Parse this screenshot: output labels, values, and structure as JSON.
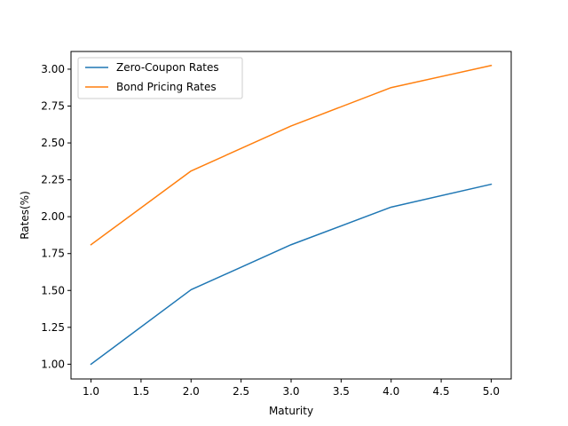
{
  "chart_data": {
    "type": "line",
    "title": "",
    "xlabel": "Maturity",
    "ylabel": "Rates(%)",
    "xlim": [
      0.8,
      5.2
    ],
    "ylim": [
      0.9,
      3.12
    ],
    "grid": false,
    "legend_position": "upper-left",
    "x_ticks": [
      {
        "value": 1.0,
        "label": "1.0"
      },
      {
        "value": 1.5,
        "label": "1.5"
      },
      {
        "value": 2.0,
        "label": "2.0"
      },
      {
        "value": 2.5,
        "label": "2.5"
      },
      {
        "value": 3.0,
        "label": "3.0"
      },
      {
        "value": 3.5,
        "label": "3.5"
      },
      {
        "value": 4.0,
        "label": "4.0"
      },
      {
        "value": 4.5,
        "label": "4.5"
      },
      {
        "value": 5.0,
        "label": "5.0"
      }
    ],
    "y_ticks": [
      {
        "value": 1.0,
        "label": "1.00"
      },
      {
        "value": 1.25,
        "label": "1.25"
      },
      {
        "value": 1.5,
        "label": "1.50"
      },
      {
        "value": 1.75,
        "label": "1.75"
      },
      {
        "value": 2.0,
        "label": "2.00"
      },
      {
        "value": 2.25,
        "label": "2.25"
      },
      {
        "value": 2.5,
        "label": "2.50"
      },
      {
        "value": 2.75,
        "label": "2.75"
      },
      {
        "value": 3.0,
        "label": "3.00"
      }
    ],
    "x": [
      1,
      2,
      3,
      4,
      5
    ],
    "series": [
      {
        "name": "Zero-Coupon Rates",
        "color": "#1f77b4",
        "values": [
          1.0,
          1.505,
          1.81,
          2.065,
          2.22
        ]
      },
      {
        "name": "Bond Pricing Rates",
        "color": "#ff7f0e",
        "values": [
          1.81,
          2.31,
          2.615,
          2.875,
          3.025
        ]
      }
    ]
  }
}
